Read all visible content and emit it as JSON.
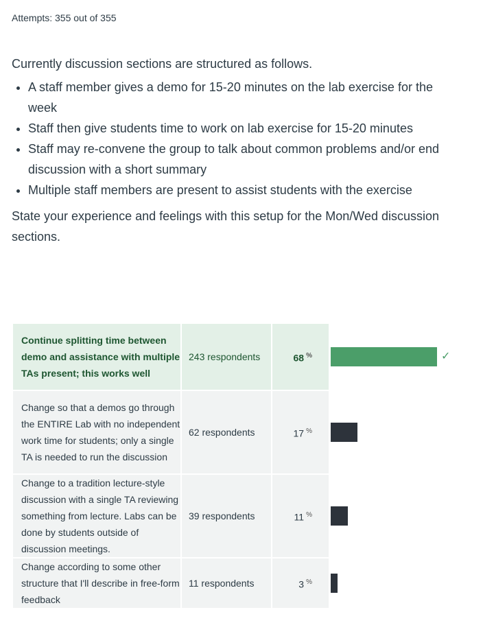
{
  "attempts": "Attempts: 355 out of 355",
  "question": {
    "intro": "Currently discussion sections are structured as follows.",
    "bullets": [
      "A staff member gives a demo for 15-20 minutes on the lab exercise for the week",
      "Staff then give students time to work on lab exercise for 15-20 minutes",
      "Staff may re-convene the group to talk about common problems and/or end discussion with a short summary",
      "Multiple staff members are present to assist students with the exercise"
    ],
    "prompt": "State your experience and feelings with this setup for the Mon/Wed discussion sections."
  },
  "answers": [
    {
      "text": "Continue splitting time between demo and assistance with multiple TAs present; this works well",
      "respondents": "243 respondents",
      "percent": "68",
      "pct_sign": "%",
      "value": 68,
      "correct": true
    },
    {
      "text": "Change so that a demos go through the ENTIRE Lab with no independent work time for students; only a single TA is needed to run the discussion",
      "respondents": "62 respondents",
      "percent": "17",
      "pct_sign": "%",
      "value": 17
    },
    {
      "text": "Change to a tradition lecture-style discussion with a single TA reviewing something from lecture. Labs can be done by students outside of discussion meetings.",
      "respondents": "39 respondents",
      "percent": "11",
      "pct_sign": "%",
      "value": 11
    },
    {
      "text": "Change according to some other structure that I'll describe in free-form feedback",
      "respondents": "11 respondents",
      "percent": "3",
      "pct_sign": "%",
      "value": 3
    }
  ],
  "colors": {
    "correct_bar": "#4b9e69",
    "bar": "#2d333b"
  }
}
